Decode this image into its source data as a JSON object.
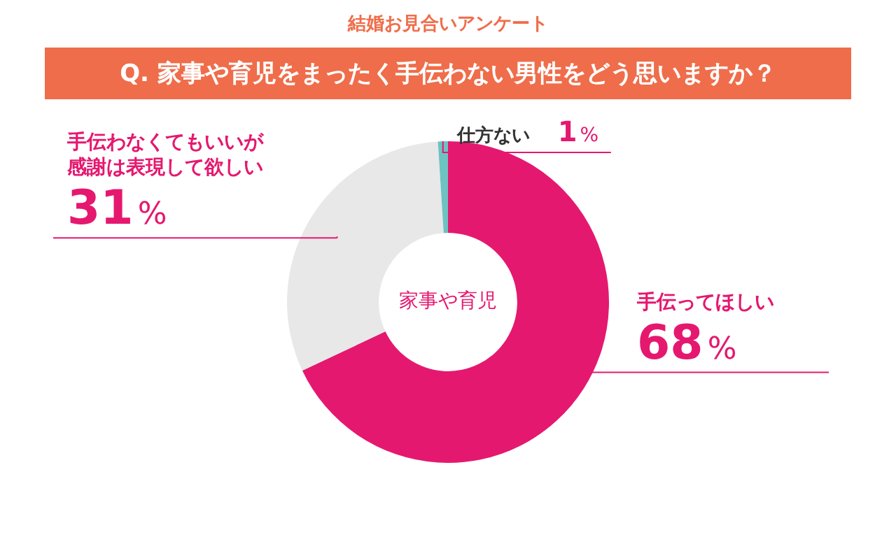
{
  "chart_data": {
    "type": "donut",
    "subtitle": "結婚お見合いアンケート",
    "title": "Q. 家事や育児をまったく手伝わない男性をどう思いますか？",
    "categories": [
      "手伝ってほしい",
      "手伝わなくてもいいが感謝は表現して欲しい",
      "仕方ない"
    ],
    "values": [
      68,
      31,
      1
    ],
    "value_labels": [
      "68%",
      "31%",
      "1%"
    ],
    "colors": [
      "#e5186f",
      "#e8e8e8",
      "#6cc3c2"
    ],
    "annotations": [
      "家事や育児"
    ],
    "legend": false
  }
}
